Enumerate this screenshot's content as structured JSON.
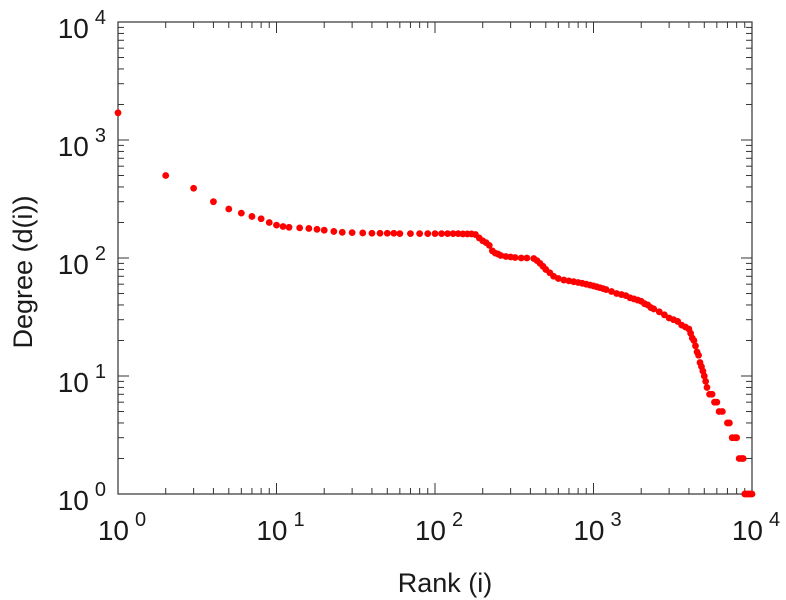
{
  "chart_data": {
    "type": "scatter",
    "xscale": "log",
    "yscale": "log",
    "xlabel": "Rank (i)",
    "ylabel": "Degree (d(i))",
    "xlim": [
      1,
      10000
    ],
    "ylim": [
      1,
      10000
    ],
    "grid": false,
    "marker_color": "#ff0000",
    "x_ticks": [
      {
        "base": "10",
        "exp": "0",
        "value": 1
      },
      {
        "base": "10",
        "exp": "1",
        "value": 10
      },
      {
        "base": "10",
        "exp": "2",
        "value": 100
      },
      {
        "base": "10",
        "exp": "3",
        "value": 1000
      },
      {
        "base": "10",
        "exp": "4",
        "value": 10000
      }
    ],
    "y_ticks": [
      {
        "base": "10",
        "exp": "0",
        "value": 1
      },
      {
        "base": "10",
        "exp": "1",
        "value": 10
      },
      {
        "base": "10",
        "exp": "2",
        "value": 100
      },
      {
        "base": "10",
        "exp": "3",
        "value": 1000
      },
      {
        "base": "10",
        "exp": "4",
        "value": 10000
      }
    ],
    "series": [
      {
        "points": [
          [
            1,
            1700
          ],
          [
            2,
            500
          ],
          [
            3,
            390
          ],
          [
            4,
            300
          ],
          [
            5,
            260
          ],
          [
            6,
            240
          ],
          [
            7,
            225
          ],
          [
            8,
            215
          ],
          [
            9,
            200
          ],
          [
            10,
            190
          ],
          [
            11,
            185
          ],
          [
            12,
            182
          ],
          [
            14,
            180
          ],
          [
            16,
            178
          ],
          [
            18,
            175
          ],
          [
            20,
            172
          ],
          [
            23,
            168
          ],
          [
            26,
            165
          ],
          [
            30,
            164
          ],
          [
            35,
            163
          ],
          [
            40,
            162
          ],
          [
            45,
            162
          ],
          [
            50,
            162
          ],
          [
            55,
            162
          ],
          [
            60,
            161
          ],
          [
            70,
            161
          ],
          [
            80,
            161
          ],
          [
            90,
            161
          ],
          [
            100,
            161
          ],
          [
            110,
            161
          ],
          [
            120,
            161
          ],
          [
            130,
            161
          ],
          [
            140,
            161
          ],
          [
            150,
            160
          ],
          [
            160,
            160
          ],
          [
            170,
            160
          ],
          [
            180,
            158
          ],
          [
            190,
            148
          ],
          [
            200,
            140
          ],
          [
            210,
            135
          ],
          [
            220,
            128
          ],
          [
            230,
            115
          ],
          [
            240,
            110
          ],
          [
            250,
            108
          ],
          [
            260,
            105
          ],
          [
            280,
            103
          ],
          [
            300,
            102
          ],
          [
            320,
            101
          ],
          [
            350,
            100
          ],
          [
            380,
            100
          ],
          [
            420,
            99
          ],
          [
            440,
            95
          ],
          [
            460,
            90
          ],
          [
            480,
            85
          ],
          [
            500,
            80
          ],
          [
            530,
            75
          ],
          [
            560,
            70
          ],
          [
            600,
            67
          ],
          [
            650,
            65
          ],
          [
            700,
            64
          ],
          [
            750,
            63
          ],
          [
            800,
            62
          ],
          [
            850,
            61
          ],
          [
            900,
            60
          ],
          [
            950,
            59
          ],
          [
            1000,
            58
          ],
          [
            1050,
            57
          ],
          [
            1100,
            56
          ],
          [
            1150,
            55
          ],
          [
            1200,
            54
          ],
          [
            1300,
            52
          ],
          [
            1400,
            50
          ],
          [
            1500,
            49
          ],
          [
            1600,
            48
          ],
          [
            1700,
            46
          ],
          [
            1800,
            45
          ],
          [
            1900,
            44
          ],
          [
            2000,
            43
          ],
          [
            2100,
            41
          ],
          [
            2200,
            40
          ],
          [
            2300,
            38
          ],
          [
            2400,
            37
          ],
          [
            2600,
            35
          ],
          [
            2800,
            33
          ],
          [
            3000,
            31
          ],
          [
            3200,
            30
          ],
          [
            3400,
            29
          ],
          [
            3600,
            27
          ],
          [
            3800,
            26
          ],
          [
            4000,
            25
          ],
          [
            4100,
            23
          ],
          [
            4200,
            21
          ],
          [
            4300,
            20
          ],
          [
            4400,
            18
          ],
          [
            4500,
            16
          ],
          [
            4600,
            15
          ],
          [
            4700,
            13
          ],
          [
            4800,
            12
          ],
          [
            4900,
            11
          ],
          [
            5000,
            10
          ],
          [
            5100,
            9
          ],
          [
            5200,
            8
          ],
          [
            5400,
            7
          ],
          [
            5600,
            7
          ],
          [
            5800,
            6
          ],
          [
            6000,
            6
          ],
          [
            6200,
            5
          ],
          [
            6500,
            5
          ],
          [
            7000,
            4
          ],
          [
            7200,
            4
          ],
          [
            7500,
            3
          ],
          [
            7800,
            3
          ],
          [
            8000,
            3
          ],
          [
            8300,
            2
          ],
          [
            8600,
            2
          ],
          [
            8800,
            2
          ],
          [
            9000,
            1
          ],
          [
            9200,
            1
          ],
          [
            9400,
            1
          ],
          [
            9600,
            1
          ],
          [
            9800,
            1
          ],
          [
            10000,
            1
          ]
        ]
      }
    ]
  }
}
